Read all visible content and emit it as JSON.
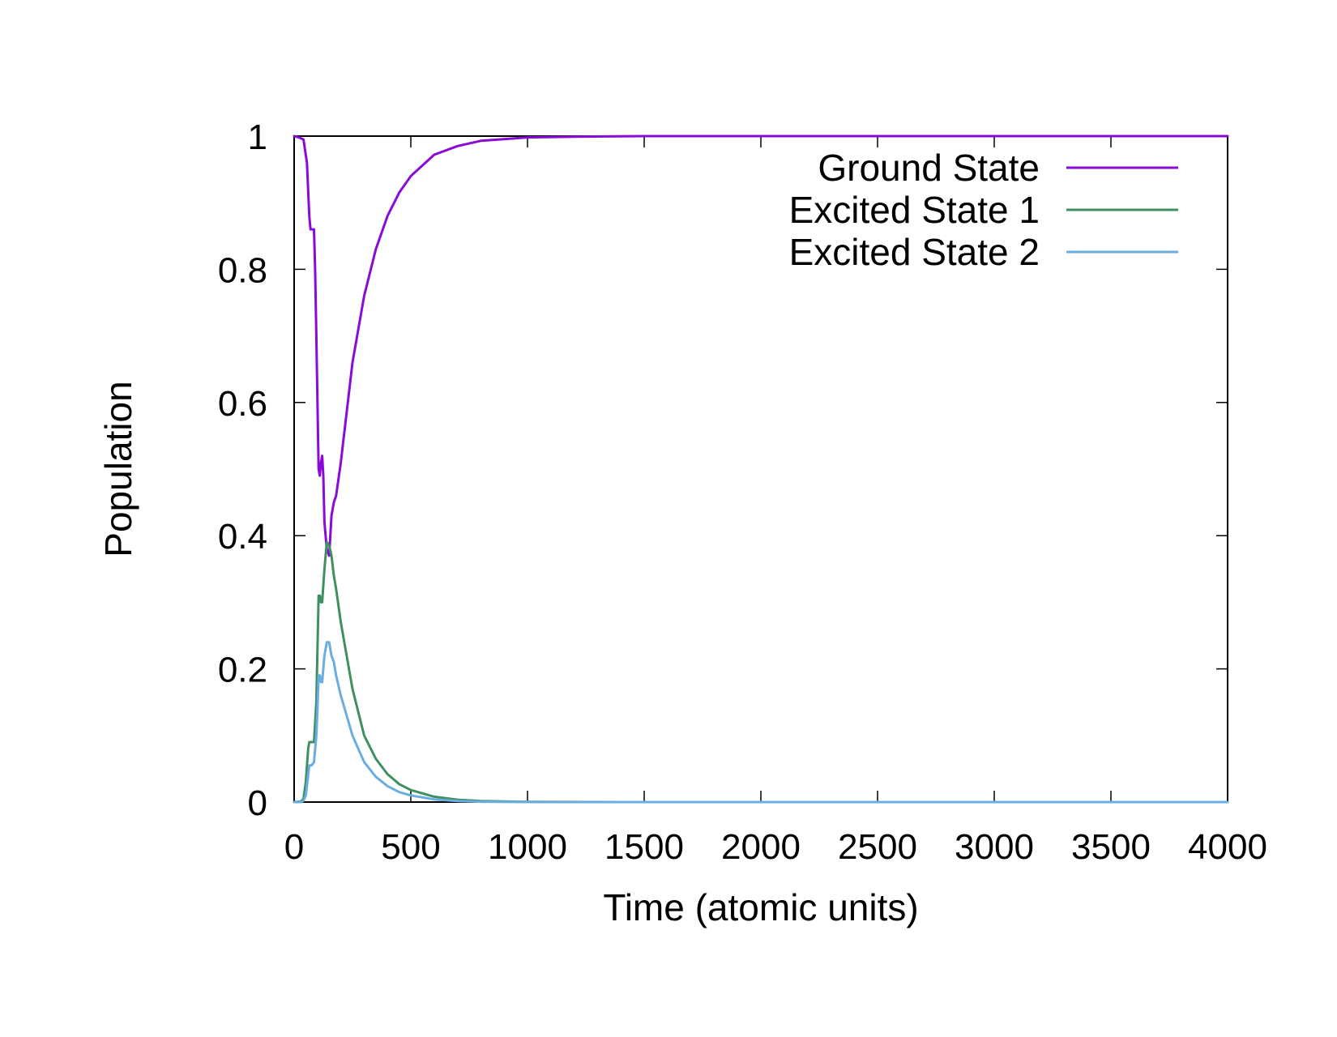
{
  "chart_data": {
    "type": "line",
    "title": "",
    "xlabel": "Time (atomic units)",
    "ylabel": "Population",
    "xlim": [
      0,
      4000
    ],
    "ylim": [
      0,
      1
    ],
    "xticks": [
      0,
      500,
      1000,
      1500,
      2000,
      2500,
      3000,
      3500,
      4000
    ],
    "yticks": [
      0,
      0.2,
      0.4,
      0.6,
      0.8,
      1
    ],
    "xtick_labels": [
      "0",
      "500",
      "1000",
      "1500",
      "2000",
      "2500",
      "3000",
      "3500",
      "4000"
    ],
    "ytick_labels": [
      "0",
      "0.2",
      "0.4",
      "0.6",
      "0.8",
      "1"
    ],
    "grid": false,
    "legend_position": "top-right",
    "series": [
      {
        "name": "Ground State",
        "color": "#8a0ad6",
        "x": [
          0,
          20,
          40,
          55,
          65,
          70,
          75,
          85,
          90,
          95,
          100,
          105,
          110,
          115,
          120,
          125,
          130,
          140,
          150,
          160,
          170,
          180,
          200,
          250,
          300,
          350,
          400,
          450,
          500,
          600,
          700,
          800,
          1000,
          1200,
          1500,
          2000,
          3000,
          4000
        ],
        "y": [
          1.0,
          0.998,
          0.995,
          0.96,
          0.88,
          0.86,
          0.86,
          0.86,
          0.8,
          0.7,
          0.6,
          0.5,
          0.49,
          0.51,
          0.52,
          0.49,
          0.42,
          0.38,
          0.37,
          0.43,
          0.45,
          0.46,
          0.51,
          0.66,
          0.76,
          0.83,
          0.88,
          0.915,
          0.94,
          0.972,
          0.985,
          0.993,
          0.998,
          0.999,
          1.0,
          1.0,
          1.0,
          1.0
        ]
      },
      {
        "name": "Excited State 1",
        "color": "#3f8f5f",
        "x": [
          0,
          30,
          40,
          50,
          60,
          65,
          75,
          85,
          95,
          100,
          105,
          110,
          115,
          120,
          130,
          140,
          150,
          160,
          170,
          180,
          200,
          250,
          300,
          350,
          400,
          450,
          500,
          600,
          700,
          800,
          1000,
          1200,
          1500,
          2000,
          3000,
          4000
        ],
        "y": [
          0.0,
          0.001,
          0.005,
          0.03,
          0.08,
          0.09,
          0.09,
          0.09,
          0.15,
          0.23,
          0.31,
          0.31,
          0.3,
          0.3,
          0.35,
          0.39,
          0.385,
          0.37,
          0.34,
          0.32,
          0.27,
          0.17,
          0.1,
          0.065,
          0.042,
          0.027,
          0.018,
          0.008,
          0.0035,
          0.0015,
          0.0003,
          0.0001,
          0.0,
          0.0,
          0.0,
          0.0
        ]
      },
      {
        "name": "Excited State 2",
        "color": "#6aade0",
        "x": [
          0,
          30,
          40,
          50,
          60,
          65,
          75,
          85,
          95,
          100,
          105,
          110,
          115,
          120,
          130,
          140,
          150,
          160,
          170,
          180,
          200,
          250,
          300,
          350,
          400,
          450,
          500,
          600,
          700,
          800,
          1000,
          1200,
          1500,
          2000,
          3000,
          4000
        ],
        "y": [
          0.0,
          0.0,
          0.002,
          0.01,
          0.04,
          0.055,
          0.055,
          0.06,
          0.1,
          0.14,
          0.19,
          0.19,
          0.18,
          0.18,
          0.22,
          0.24,
          0.24,
          0.22,
          0.21,
          0.19,
          0.16,
          0.1,
          0.06,
          0.038,
          0.024,
          0.015,
          0.01,
          0.004,
          0.0015,
          0.0005,
          0.0001,
          0.0,
          0.0,
          0.0,
          0.0,
          0.0
        ]
      }
    ]
  }
}
